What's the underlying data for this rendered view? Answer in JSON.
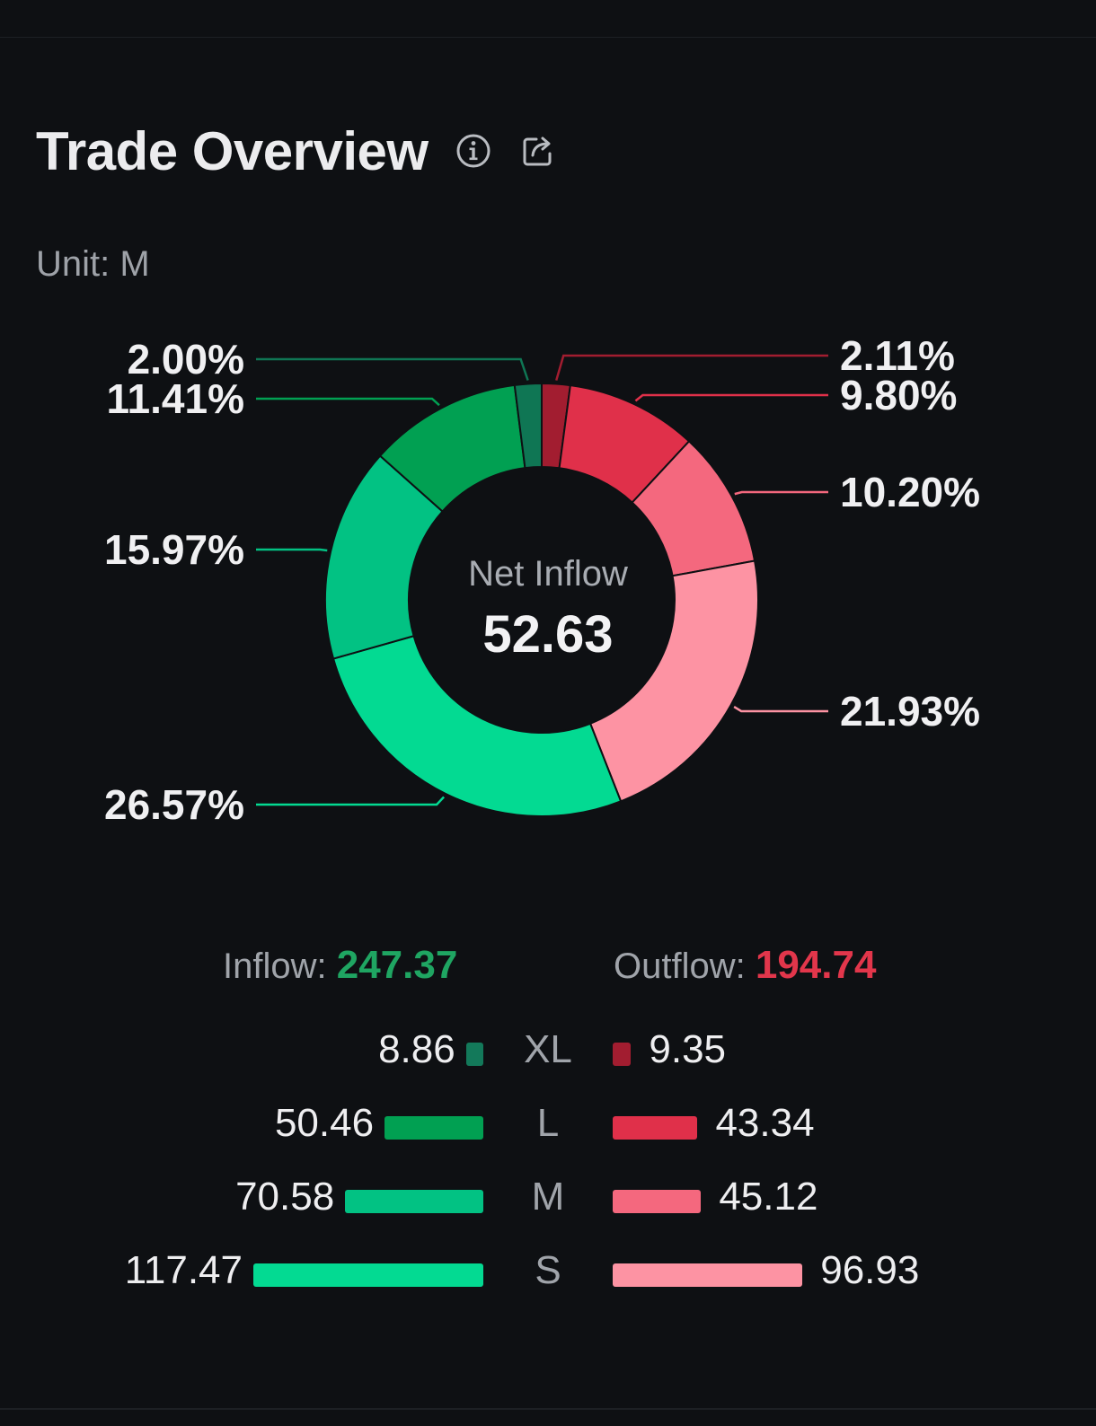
{
  "header": {
    "title": "Trade Overview",
    "info_icon": "info-icon",
    "share_icon": "share-icon"
  },
  "unit_label": "Unit: M",
  "chart_data": {
    "type": "donut",
    "center_title": "Net Inflow",
    "center_value": "52.63",
    "slices": [
      {
        "label": "XL Outflow",
        "percent_label": "2.11%",
        "value": 2.11,
        "color": "#a21d30"
      },
      {
        "label": "L Outflow",
        "percent_label": "9.80%",
        "value": 9.8,
        "color": "#e0304a"
      },
      {
        "label": "M Outflow",
        "percent_label": "10.20%",
        "value": 10.2,
        "color": "#f4687e"
      },
      {
        "label": "S Outflow",
        "percent_label": "21.93%",
        "value": 21.93,
        "color": "#fd93a3"
      },
      {
        "label": "S Inflow",
        "percent_label": "26.57%",
        "value": 26.57,
        "color": "#03da92"
      },
      {
        "label": "M Inflow",
        "percent_label": "15.97%",
        "value": 15.97,
        "color": "#02c283"
      },
      {
        "label": "L Inflow",
        "percent_label": "11.41%",
        "value": 11.41,
        "color": "#01a052"
      },
      {
        "label": "XL Inflow",
        "percent_label": "2.00%",
        "value": 2.0,
        "color": "#0f7654"
      }
    ]
  },
  "totals": {
    "inflow_label": "Inflow:",
    "inflow_value": "247.37",
    "outflow_label": "Outflow:",
    "outflow_value": "194.74"
  },
  "breakdown": [
    {
      "category": "XL",
      "inflow": 8.86,
      "inflow_text": "8.86",
      "outflow": 9.35,
      "outflow_text": "9.35"
    },
    {
      "category": "L",
      "inflow": 50.46,
      "inflow_text": "50.46",
      "outflow": 43.34,
      "outflow_text": "43.34"
    },
    {
      "category": "M",
      "inflow": 70.58,
      "inflow_text": "70.58",
      "outflow": 45.12,
      "outflow_text": "45.12"
    },
    {
      "category": "S",
      "inflow": 117.47,
      "inflow_text": "117.47",
      "outflow": 96.93,
      "outflow_text": "96.93"
    }
  ],
  "colors": {
    "inflow": [
      "#13795a",
      "#01a052",
      "#02c283",
      "#03da92"
    ],
    "outflow": [
      "#a21d30",
      "#e0304a",
      "#f4687e",
      "#fd93a3"
    ],
    "inflow_total": "#1fa562",
    "outflow_total": "#e2364b"
  }
}
